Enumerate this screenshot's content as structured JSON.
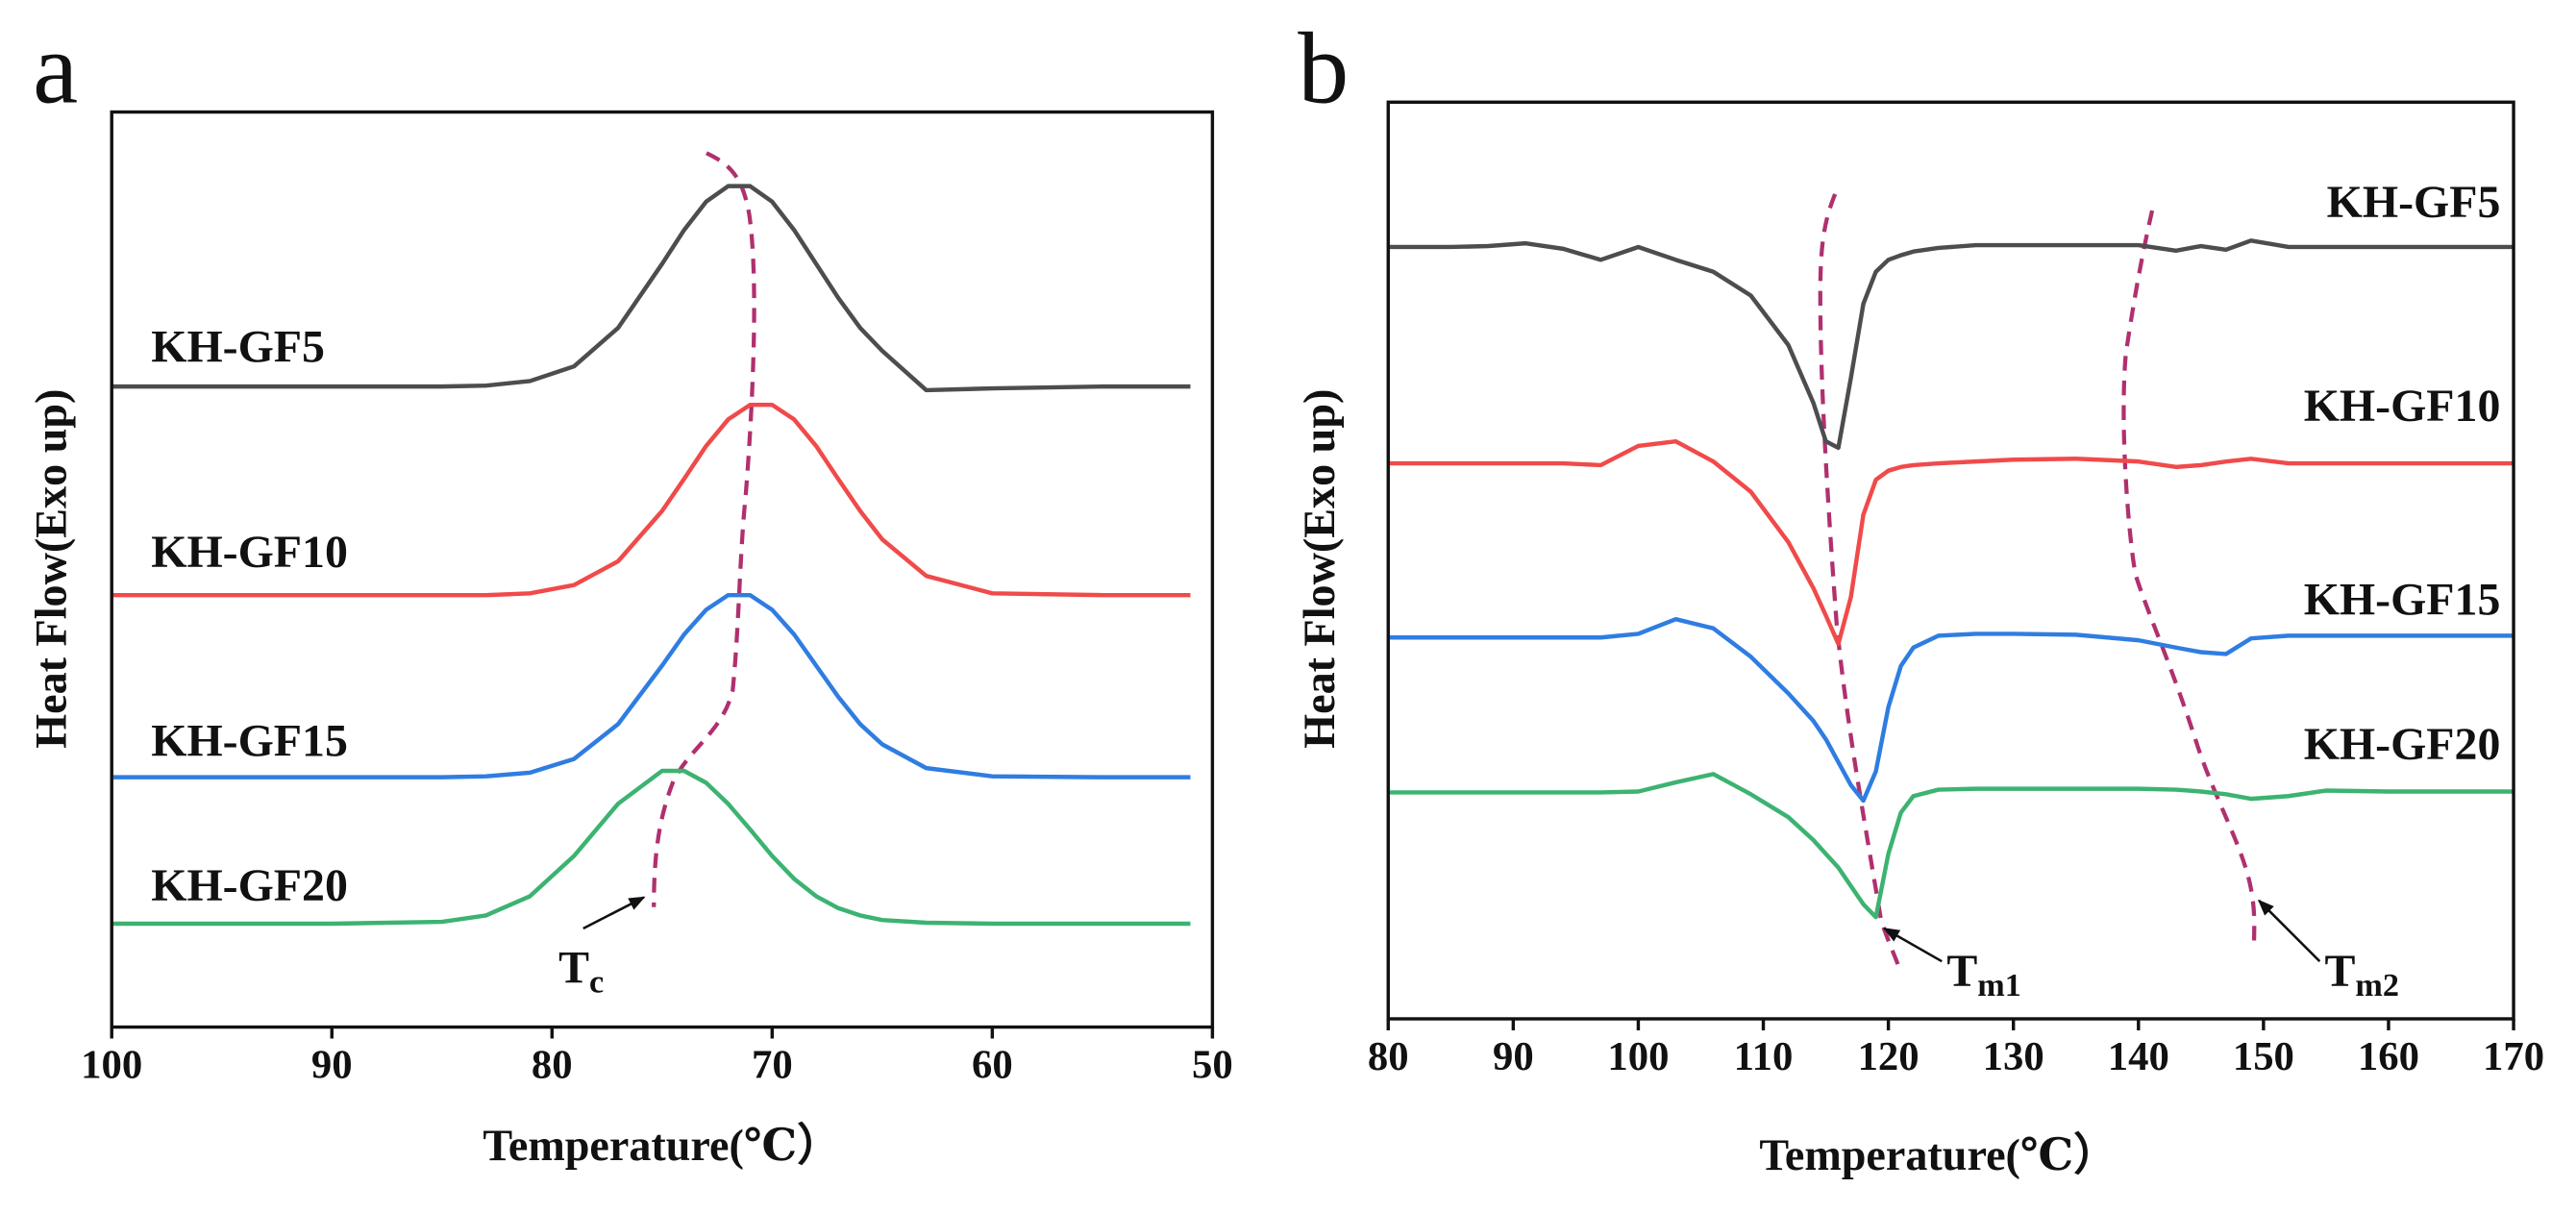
{
  "chart_data": [
    {
      "type": "line",
      "panel_label": "a",
      "x_label": "Temperature(℃）",
      "y_label": "Heat Flow(Exo up)",
      "xlim": [
        100,
        50
      ],
      "xticks": [
        100,
        90,
        80,
        70,
        60,
        50
      ],
      "ylim": [
        0,
        100
      ],
      "x": [
        100,
        95,
        90,
        85,
        83,
        81,
        79,
        77,
        75,
        74,
        73,
        72,
        71,
        70,
        69,
        68,
        67,
        66,
        65,
        63,
        60,
        55,
        51
      ],
      "series": [
        {
          "name": "KH-GF5",
          "color": "#4d4d4d",
          "values": [
            70.0,
            70.0,
            70.0,
            70.0,
            70.1,
            70.6,
            72.2,
            76.4,
            83.4,
            87.1,
            90.2,
            91.9,
            91.9,
            90.2,
            87.1,
            83.4,
            79.7,
            76.4,
            73.9,
            69.6,
            69.8,
            70.0,
            70.0
          ]
        },
        {
          "name": "KH-GF10",
          "color": "#f04a4a",
          "values": [
            47.2,
            47.2,
            47.2,
            47.2,
            47.2,
            47.4,
            48.3,
            50.9,
            56.4,
            59.9,
            63.5,
            66.4,
            68.0,
            68.0,
            66.4,
            63.5,
            59.9,
            56.4,
            53.3,
            49.3,
            47.4,
            47.2,
            47.2
          ]
        },
        {
          "name": "KH-GF15",
          "color": "#2f7de1",
          "values": [
            27.3,
            27.3,
            27.3,
            27.3,
            27.4,
            27.8,
            29.3,
            33.1,
            39.5,
            42.9,
            45.6,
            47.2,
            47.2,
            45.6,
            42.9,
            39.5,
            36.1,
            33.1,
            30.9,
            28.3,
            27.4,
            27.3,
            27.3
          ]
        },
        {
          "name": "KH-GF20",
          "color": "#3cb371",
          "values": [
            11.3,
            11.3,
            11.3,
            11.5,
            12.2,
            14.3,
            18.7,
            24.4,
            28.0,
            28.0,
            26.7,
            24.4,
            21.6,
            18.7,
            16.2,
            14.3,
            13.0,
            12.2,
            11.7,
            11.4,
            11.3,
            11.3,
            11.3
          ]
        }
      ],
      "annotations": [
        {
          "label": "T",
          "subscript": "c"
        }
      ]
    },
    {
      "type": "line",
      "panel_label": "b",
      "x_label": "Temperature(℃）",
      "y_label": "Heat Flow(Exo up)",
      "xlim": [
        80,
        170
      ],
      "xticks": [
        80,
        90,
        100,
        110,
        120,
        130,
        140,
        150,
        160,
        170
      ],
      "ylim": [
        0,
        100
      ],
      "x": [
        80,
        85,
        88,
        91,
        94,
        97,
        100,
        103,
        106,
        109,
        112,
        114,
        115,
        116,
        117,
        118,
        119,
        120,
        121,
        122,
        124,
        127,
        130,
        135,
        140,
        143,
        145,
        147,
        149,
        152,
        155,
        160,
        165,
        170
      ],
      "series": [
        {
          "name": "KH-GF5",
          "color": "#4d4d4d",
          "values": [
            84.2,
            84.2,
            84.3,
            84.6,
            84.0,
            82.8,
            84.2,
            82.8,
            81.5,
            78.9,
            73.5,
            67.2,
            63.0,
            62.3,
            69.9,
            78.0,
            81.5,
            82.8,
            83.3,
            83.7,
            84.1,
            84.4,
            84.4,
            84.4,
            84.4,
            83.8,
            84.3,
            83.9,
            84.9,
            84.2,
            84.2,
            84.2,
            84.2,
            84.2
          ]
        },
        {
          "name": "KH-GF10",
          "color": "#f04a4a",
          "values": [
            60.6,
            60.6,
            60.6,
            60.6,
            60.6,
            60.4,
            62.5,
            63.0,
            60.8,
            57.5,
            52.0,
            47.0,
            44.0,
            40.9,
            46.0,
            55.0,
            58.8,
            59.8,
            60.2,
            60.4,
            60.6,
            60.8,
            61.0,
            61.1,
            60.8,
            60.2,
            60.4,
            60.8,
            61.1,
            60.6,
            60.6,
            60.6,
            60.6,
            60.6
          ]
        },
        {
          "name": "KH-GF15",
          "color": "#2f7de1",
          "values": [
            41.6,
            41.6,
            41.6,
            41.6,
            41.6,
            41.6,
            42.0,
            43.6,
            42.6,
            39.5,
            35.5,
            32.5,
            30.5,
            28.0,
            25.5,
            23.8,
            27.0,
            34.0,
            38.5,
            40.5,
            41.8,
            42.0,
            42.0,
            41.9,
            41.3,
            40.5,
            40.0,
            39.8,
            41.5,
            41.8,
            41.8,
            41.8,
            41.8,
            41.8
          ]
        },
        {
          "name": "KH-GF20",
          "color": "#3cb371",
          "values": [
            24.7,
            24.7,
            24.7,
            24.7,
            24.7,
            24.7,
            24.8,
            25.8,
            26.7,
            24.5,
            22.0,
            19.5,
            18.0,
            16.5,
            14.5,
            12.5,
            11.1,
            18.0,
            22.5,
            24.3,
            25.0,
            25.1,
            25.1,
            25.1,
            25.1,
            25.0,
            24.8,
            24.5,
            24.0,
            24.3,
            24.9,
            24.8,
            24.8,
            24.8
          ]
        }
      ],
      "annotations": [
        {
          "label": "T",
          "subscript": "m1"
        },
        {
          "label": "T",
          "subscript": "m2"
        }
      ]
    }
  ]
}
